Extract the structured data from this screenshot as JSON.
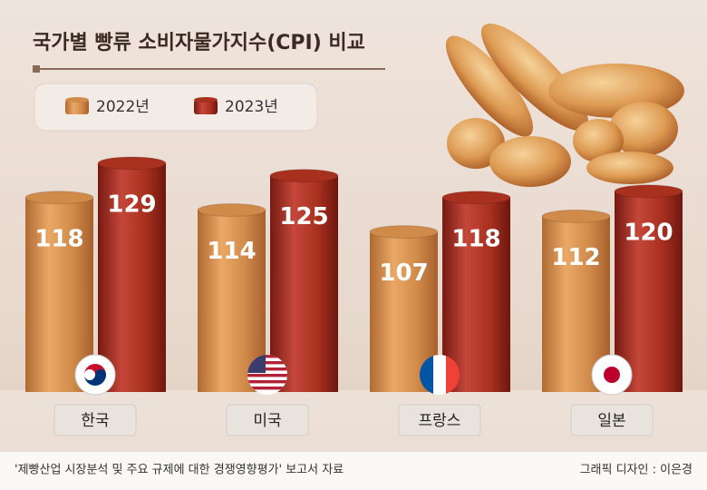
{
  "chart_data": {
    "type": "bar",
    "title": "국가별 빵류 소비자물가지수(CPI) 비교",
    "categories": [
      "한국",
      "미국",
      "프랑스",
      "일본"
    ],
    "series": [
      {
        "name": "2022년",
        "color": "#d08a4a",
        "values": [
          118,
          114,
          107,
          112
        ]
      },
      {
        "name": "2023년",
        "color": "#a8301f",
        "values": [
          129,
          125,
          118,
          120
        ]
      }
    ],
    "source": "'제빵산업 시장분석 및 주요 규제에 대한 경쟁영향평가' 보고서 자료",
    "credit": "그래픽 디자인 : 이은경"
  }
}
